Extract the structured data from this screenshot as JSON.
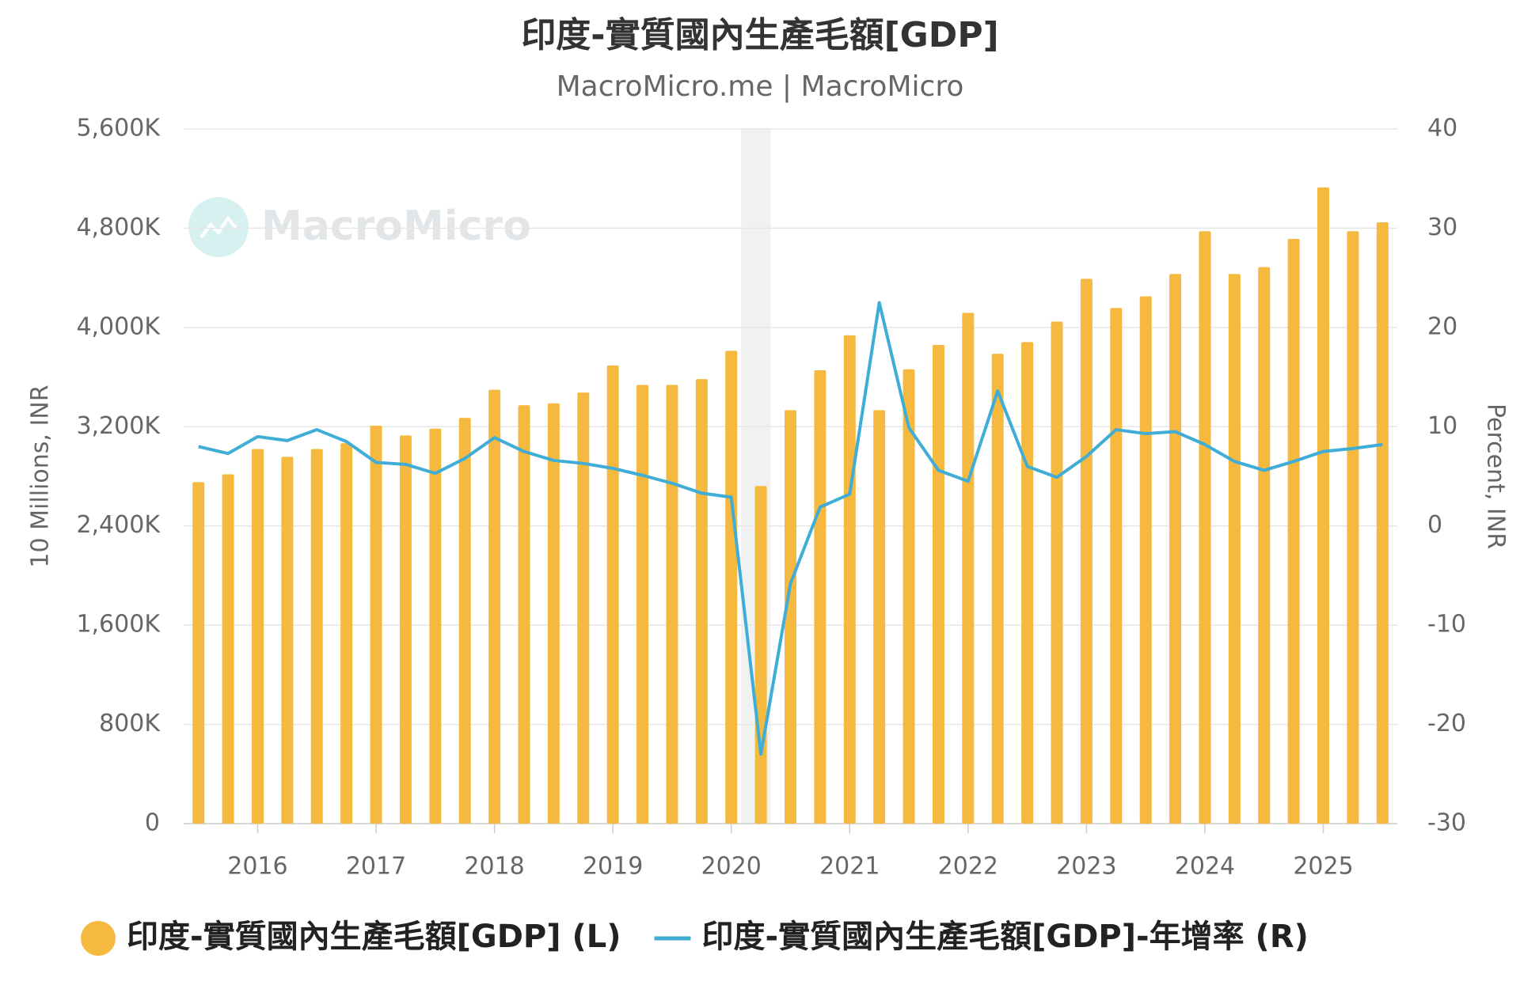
{
  "chart_data": {
    "type": "bar-line",
    "title": "印度-實質國內生產毛額[GDP]",
    "subtitle": "MacroMicro.me | MacroMicro",
    "watermark": "MacroMicro",
    "ylabel": "10 Millions, INR",
    "y2label": "Percent, INR",
    "xlim": [
      2015.375,
      2025.625
    ],
    "xticks": [
      2016,
      2017,
      2018,
      2019,
      2020,
      2021,
      2022,
      2023,
      2024,
      2025
    ],
    "ylim": [
      0,
      5600000
    ],
    "yticks": [
      0,
      {
        "value": 800000,
        "label": "800K"
      },
      {
        "value": 1600000,
        "label": "1,600K"
      },
      {
        "value": 2400000,
        "label": "2,400K"
      },
      {
        "value": 3200000,
        "label": "3,200K"
      },
      {
        "value": 4000000,
        "label": "4,000K"
      },
      {
        "value": 4800000,
        "label": "4,800K"
      },
      {
        "value": 5600000,
        "label": "5,600K"
      }
    ],
    "y2lim": [
      -30,
      40
    ],
    "y2ticks": [
      -30,
      -20,
      -10,
      0,
      10,
      20,
      30,
      40
    ],
    "grid": true,
    "recession": [
      2020.083,
      2020.333
    ],
    "x": [
      2015.5,
      2015.75,
      2016,
      2016.25,
      2016.5,
      2016.75,
      2017,
      2017.25,
      2017.5,
      2017.75,
      2018,
      2018.25,
      2018.5,
      2018.75,
      2019,
      2019.25,
      2019.5,
      2019.75,
      2020,
      2020.25,
      2020.5,
      2020.75,
      2021,
      2021.25,
      2021.5,
      2021.75,
      2022,
      2022.25,
      2022.5,
      2022.75,
      2023,
      2023.25,
      2023.5,
      2023.75,
      2024,
      2024.25,
      2024.5,
      2024.75,
      2025,
      2025.25,
      2025.5
    ],
    "series": [
      {
        "name": "印度-實質國內生產毛額[GDP] (L)",
        "type": "bar",
        "axis": "y",
        "color": "#f5b940",
        "values": [
          2753000,
          2816000,
          3020000,
          2957000,
          3020000,
          3067000,
          3208000,
          3129000,
          3184000,
          3271000,
          3498000,
          3373000,
          3388000,
          3475000,
          3694000,
          3537000,
          3537000,
          3584000,
          3812000,
          2722000,
          3333000,
          3655000,
          3937000,
          3333000,
          3663000,
          3859000,
          4118000,
          3788000,
          3882000,
          4047000,
          4392000,
          4157000,
          4251000,
          4431000,
          4776000,
          4431000,
          4486000,
          4714000,
          5129000,
          4776000,
          4847000
        ]
      },
      {
        "name": "印度-實質國內生產毛額[GDP]-年增率 (R)",
        "type": "line",
        "axis": "y2",
        "color": "#3fadd6",
        "values": [
          8.0,
          7.3,
          9.0,
          8.6,
          9.7,
          8.5,
          6.4,
          6.2,
          5.3,
          6.8,
          8.9,
          7.5,
          6.6,
          6.3,
          5.8,
          5.1,
          4.3,
          3.3,
          2.9,
          -23.0,
          -5.8,
          1.9,
          3.2,
          22.5,
          9.9,
          5.6,
          4.5,
          13.6,
          6.0,
          4.9,
          7.0,
          9.7,
          9.3,
          9.5,
          8.2,
          6.5,
          5.6,
          6.5,
          7.5,
          7.8,
          8.2
        ]
      }
    ]
  }
}
